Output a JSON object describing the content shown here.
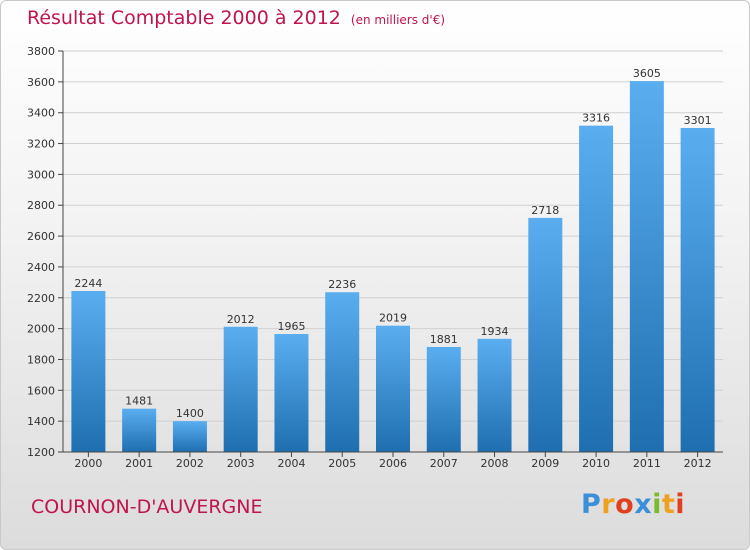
{
  "chart_data": {
    "type": "bar",
    "title": "Résultat Comptable 2000 à 2012",
    "subtitle": "(en milliers d'€)",
    "categories": [
      "2000",
      "2001",
      "2002",
      "2003",
      "2004",
      "2005",
      "2006",
      "2007",
      "2008",
      "2009",
      "2010",
      "2011",
      "2012"
    ],
    "values": [
      2244,
      1481,
      1400,
      2012,
      1965,
      2236,
      2019,
      1881,
      1934,
      2718,
      3316,
      3605,
      3301
    ],
    "ylim": [
      1200,
      3800
    ],
    "yticks": [
      1200,
      1400,
      1600,
      1800,
      2000,
      2200,
      2400,
      2600,
      2800,
      3000,
      3200,
      3400,
      3600,
      3800
    ],
    "xlabel": "",
    "ylabel": "",
    "grid": true,
    "bar_color": "#4a9fe0",
    "bar_color_dark": "#1f6fb0"
  },
  "footer": {
    "commune": "COURNON-D'AUVERGNE"
  },
  "logo": {
    "letters": [
      "P",
      "r",
      "o",
      "x",
      "i",
      "t",
      "i"
    ],
    "colors": [
      "#3a8fd8",
      "#f0a020",
      "#e04020",
      "#3a8fd8",
      "#7cbc2a",
      "#f0a020",
      "#e04020"
    ]
  },
  "colors": {
    "accent": "#c0144c",
    "axis": "#444444",
    "grid": "#d0d0d0"
  }
}
